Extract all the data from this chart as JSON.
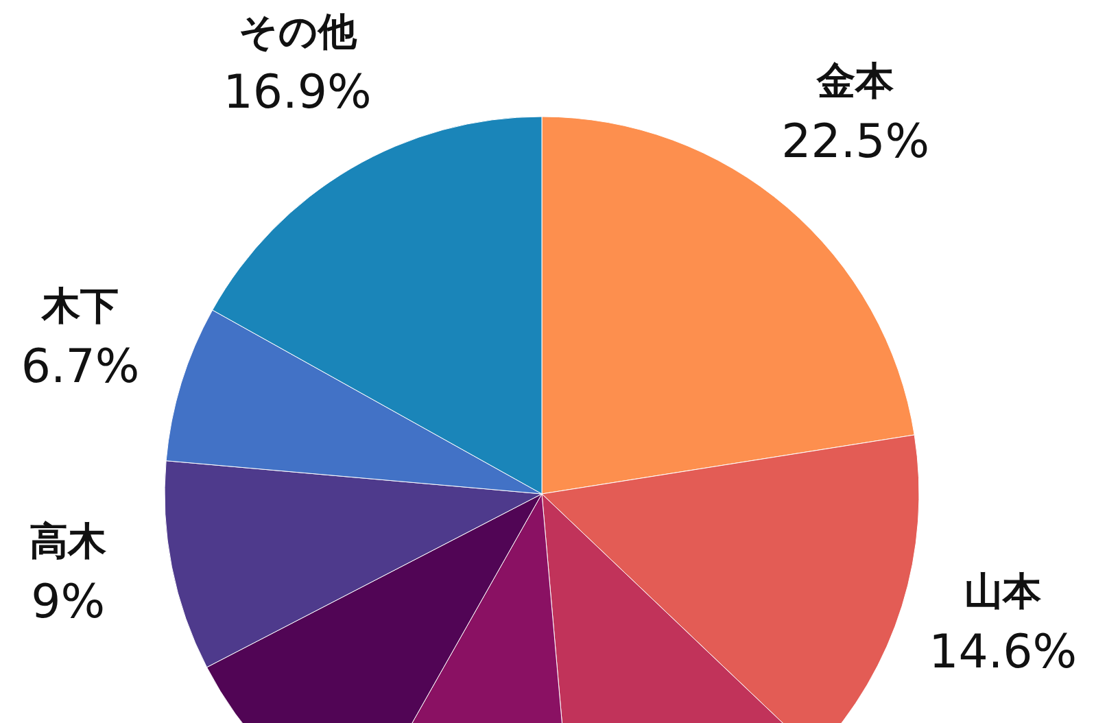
{
  "chart_data": {
    "type": "pie",
    "categories": [
      "金本",
      "山本",
      null,
      null,
      null,
      "高木",
      "木下",
      "その他"
    ],
    "values": [
      22.5,
      14.6,
      11.5,
      9.6,
      9.2,
      9,
      6.7,
      16.9
    ],
    "value_labels": [
      "22.5%",
      "14.6%",
      null,
      null,
      null,
      "9%",
      "6.7%",
      "16.9%"
    ],
    "colors": [
      "#fd8f4e",
      "#e35c55",
      "#c1335a",
      "#8a1163",
      "#510555",
      "#4e3a8c",
      "#4272c6",
      "#1a85b9"
    ]
  }
}
